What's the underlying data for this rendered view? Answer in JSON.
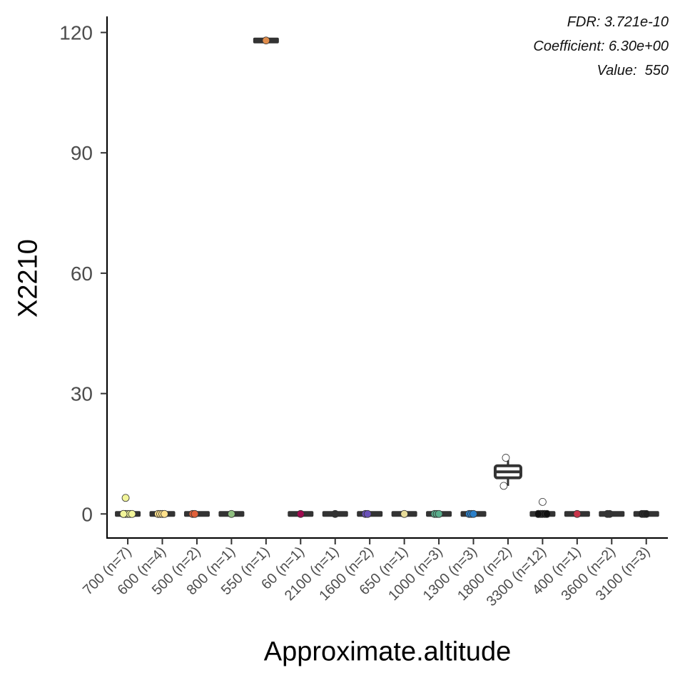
{
  "chart_data": {
    "type": "box",
    "title": "",
    "xlabel": "Approximate.altitude",
    "ylabel": "X2210",
    "ylim": [
      -6,
      124
    ],
    "yticks": [
      0,
      30,
      60,
      90,
      120
    ],
    "grid": false,
    "legend": "none",
    "annotations": [
      "FDR: 3.721e-10",
      "Coefficient: 6.30e+00",
      "Value:  550"
    ],
    "categories": [
      "700 (n=7)",
      "600 (n=4)",
      "500 (n=2)",
      "800 (n=1)",
      "550 (n=1)",
      "60 (n=1)",
      "2100 (n=1)",
      "1600 (n=2)",
      "650 (n=1)",
      "1000 (n=3)",
      "1300 (n=3)",
      "1800 (n=2)",
      "3300 (n=12)",
      "400 (n=1)",
      "3600 (n=2)",
      "3100 (n=3)"
    ],
    "boxes": [
      {
        "q1": 0,
        "median": 0,
        "q3": 0,
        "whisker_low": 0,
        "whisker_high": 0,
        "color": "#f2f59a",
        "points": [
          0,
          0,
          0,
          0,
          0,
          0,
          4
        ],
        "outliers": []
      },
      {
        "q1": 0,
        "median": 0,
        "q3": 0,
        "whisker_low": 0,
        "whisker_high": 0,
        "color": "#fde08b",
        "points": [
          0,
          0,
          0,
          0
        ],
        "outliers": []
      },
      {
        "q1": 0,
        "median": 0,
        "q3": 0,
        "whisker_low": 0,
        "whisker_high": 0,
        "color": "#e0603a",
        "points": [
          0,
          0
        ],
        "outliers": []
      },
      {
        "q1": 0,
        "median": 0,
        "q3": 0,
        "whisker_low": 0,
        "whisker_high": 0,
        "color": "#8fbf80",
        "points": [
          0
        ],
        "outliers": []
      },
      {
        "q1": 118,
        "median": 118,
        "q3": 118,
        "whisker_low": 118,
        "whisker_high": 118,
        "color": "#e08d4c",
        "points": [
          118
        ],
        "outliers": []
      },
      {
        "q1": 0,
        "median": 0,
        "q3": 0,
        "whisker_low": 0,
        "whisker_high": 0,
        "color": "#9e0a4e",
        "points": [
          0
        ],
        "outliers": []
      },
      {
        "q1": 0,
        "median": 0,
        "q3": 0,
        "whisker_low": 0,
        "whisker_high": 0,
        "color": "#333333",
        "points": [
          0
        ],
        "outliers": []
      },
      {
        "q1": 0,
        "median": 0,
        "q3": 0,
        "whisker_low": 0,
        "whisker_high": 0,
        "color": "#6a51b8",
        "points": [
          0,
          0
        ],
        "outliers": []
      },
      {
        "q1": 0,
        "median": 0,
        "q3": 0,
        "whisker_low": 0,
        "whisker_high": 0,
        "color": "#e8dc9a",
        "points": [
          0
        ],
        "outliers": []
      },
      {
        "q1": 0,
        "median": 0,
        "q3": 0,
        "whisker_low": 0,
        "whisker_high": 0,
        "color": "#5aae8d",
        "points": [
          0,
          0,
          0
        ],
        "outliers": []
      },
      {
        "q1": 0,
        "median": 0,
        "q3": 0,
        "whisker_low": 0,
        "whisker_high": 0,
        "color": "#2b7fc8",
        "points": [
          0,
          0,
          0
        ],
        "outliers": []
      },
      {
        "q1": 9,
        "median": 10.5,
        "q3": 12,
        "whisker_low": 7,
        "whisker_high": 14,
        "color": "#ffffff",
        "points": [
          7,
          14
        ],
        "outliers": []
      },
      {
        "q1": 0,
        "median": 0,
        "q3": 0,
        "whisker_low": 0,
        "whisker_high": 0,
        "color": "#111111",
        "points": [
          0,
          0,
          0,
          0,
          0,
          0,
          0,
          0,
          0,
          0,
          0
        ],
        "outliers": [
          3
        ]
      },
      {
        "q1": 0,
        "median": 0,
        "q3": 0,
        "whisker_low": 0,
        "whisker_high": 0,
        "color": "#c8344a",
        "points": [
          0
        ],
        "outliers": []
      },
      {
        "q1": 0,
        "median": 0,
        "q3": 0,
        "whisker_low": 0,
        "whisker_high": 0,
        "color": "#333333",
        "points": [
          0,
          0
        ],
        "outliers": []
      },
      {
        "q1": 0,
        "median": 0,
        "q3": 0,
        "whisker_low": 0,
        "whisker_high": 0,
        "color": "#222222",
        "points": [
          0,
          0,
          0
        ],
        "outliers": []
      }
    ]
  }
}
